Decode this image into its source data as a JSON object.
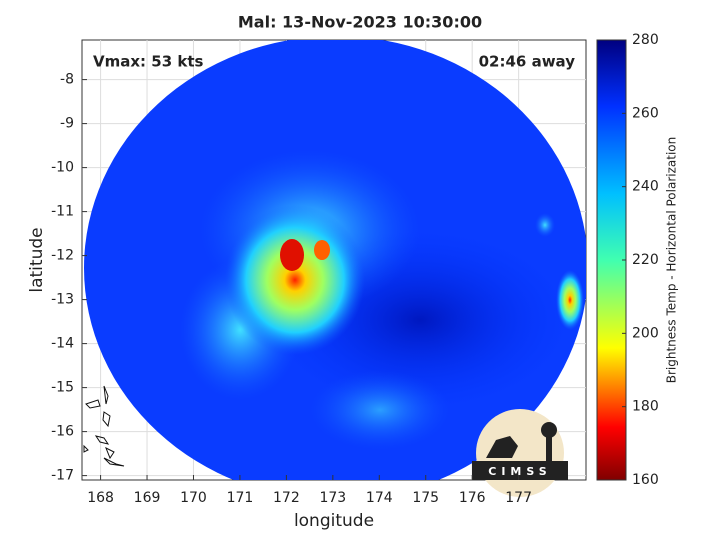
{
  "chart_data": {
    "type": "image",
    "title": "Mal: 13-Nov-2023 10:30:00",
    "annotations": [
      "Vmax: 53 kts",
      "02:46 away"
    ],
    "xlabel": "longitude",
    "ylabel": "latitude",
    "xlim": [
      167.6,
      178.45
    ],
    "ylim": [
      -17.1,
      -7.1
    ],
    "xticks": [
      168,
      169,
      170,
      171,
      172,
      173,
      174,
      175,
      176,
      177
    ],
    "yticks": [
      -8,
      -9,
      -10,
      -11,
      -12,
      -13,
      -14,
      -15,
      -16,
      -17
    ],
    "grid": true,
    "colorbar": {
      "label": "Brightness Temp - Horizontal Polarization",
      "lim": [
        160,
        280
      ],
      "ticks": [
        160,
        180,
        200,
        220,
        240,
        260,
        280
      ]
    }
  },
  "logo": {
    "text": "CIMSS"
  }
}
